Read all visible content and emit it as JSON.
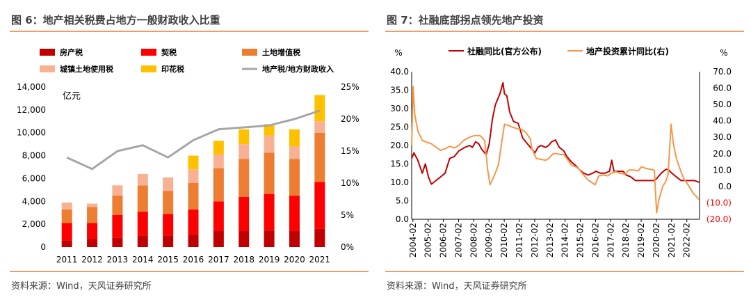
{
  "left": {
    "title": "图 6：地产相关税费占地方一般财政收入比重",
    "source": "资料来源：Wind，天风证券研究所"
  },
  "right": {
    "title": "图 7：社融底部拐点领先地产投资",
    "source": "资料来源：Wind，天风证券研究所"
  },
  "colors": {
    "rule": "#e7a06a",
    "fangchan": "#c00000",
    "qi": "#ff0000",
    "tudizengzhi": "#ed7d31",
    "chengzhen": "#f8b293",
    "yinhua": "#ffc000",
    "ratio_line": "#a6a6a6",
    "shehui": "#c00000",
    "invest": "#f79646",
    "neg_label": "#ff0000"
  },
  "chart_data": [
    {
      "type": "bar",
      "stacked": true,
      "categories": [
        "2011",
        "2012",
        "2013",
        "2014",
        "2015",
        "2016",
        "2017",
        "2018",
        "2019",
        "2020",
        "2021"
      ],
      "unit_label": "亿元",
      "ylim": [
        0,
        14000
      ],
      "y_ticks": [
        "0",
        "2,000",
        "4,000",
        "6,000",
        "8,000",
        "10,000",
        "12,000",
        "14,000"
      ],
      "y2lim": [
        0,
        25
      ],
      "y2_ticks": [
        "0%",
        "5%",
        "10%",
        "15%",
        "20%",
        "25%"
      ],
      "legend_position": "top",
      "series": [
        {
          "name": "房产税",
          "values": [
            600,
            700,
            800,
            1000,
            1000,
            1100,
            1400,
            1400,
            1450,
            1400,
            1600
          ]
        },
        {
          "name": "契税",
          "values": [
            1500,
            1400,
            2000,
            2100,
            1900,
            2200,
            2600,
            3000,
            3200,
            3100,
            4100
          ]
        },
        {
          "name": "土地增值税",
          "values": [
            1200,
            1400,
            1700,
            2300,
            2000,
            2300,
            2900,
            3300,
            3600,
            3200,
            4300
          ]
        },
        {
          "name": "城镇土地使用税",
          "values": [
            600,
            300,
            900,
            1000,
            1200,
            1200,
            1200,
            1300,
            1500,
            1100,
            1000
          ]
        },
        {
          "name": "印花税",
          "values": [
            0,
            0,
            0,
            0,
            0,
            1200,
            1200,
            1300,
            1000,
            1500,
            2300
          ]
        },
        {
          "name": "地产税/地方财政收入",
          "axis": "right",
          "values": [
            14.0,
            12.2,
            15.0,
            15.9,
            14.0,
            16.7,
            18.4,
            18.7,
            19.0,
            20.0,
            21.3
          ]
        }
      ]
    },
    {
      "type": "line",
      "x_ticks": [
        "2004-02",
        "2005-02",
        "2006-02",
        "2007-02",
        "2008-02",
        "2009-02",
        "2010-02",
        "2011-02",
        "2012-02",
        "2013-02",
        "2014-02",
        "2015-02",
        "2016-02",
        "2017-02",
        "2018-02",
        "2019-02",
        "2020-02",
        "2021-02",
        "2022-02"
      ],
      "xlim": [
        2004.0,
        2022.92
      ],
      "ylabel": "%",
      "y2label": "%",
      "ylim": [
        0,
        40
      ],
      "y_ticks": [
        "0.0",
        "5.0",
        "10.0",
        "15.0",
        "20.0",
        "25.0",
        "30.0",
        "35.0",
        "40.0"
      ],
      "y2lim": [
        -20,
        70
      ],
      "y2_ticks": [
        "70.0",
        "60.0",
        "50.0",
        "40.0",
        "30.0",
        "20.0",
        "10.0",
        "0.0",
        "(10.0)",
        "(20.0)"
      ],
      "legend_position": "top",
      "series": [
        {
          "name": "社融同比(官方公布)",
          "axis": "left",
          "points": [
            [
              2004.0,
              16.5
            ],
            [
              2004.15,
              18.0
            ],
            [
              2004.4,
              16.0
            ],
            [
              2004.7,
              12.5
            ],
            [
              2004.9,
              15.0
            ],
            [
              2005.1,
              11.5
            ],
            [
              2005.3,
              9.5
            ],
            [
              2005.6,
              10.5
            ],
            [
              2005.9,
              11.5
            ],
            [
              2006.2,
              12.5
            ],
            [
              2006.5,
              16.5
            ],
            [
              2006.8,
              17.0
            ],
            [
              2007.1,
              18.5
            ],
            [
              2007.5,
              19.5
            ],
            [
              2007.8,
              20.0
            ],
            [
              2008.0,
              19.5
            ],
            [
              2008.2,
              21.0
            ],
            [
              2008.4,
              20.5
            ],
            [
              2008.6,
              19.0
            ],
            [
              2008.9,
              17.5
            ],
            [
              2009.1,
              20.5
            ],
            [
              2009.3,
              27.0
            ],
            [
              2009.5,
              31.0
            ],
            [
              2009.8,
              34.0
            ],
            [
              2010.0,
              37.0
            ],
            [
              2010.1,
              34.0
            ],
            [
              2010.25,
              33.5
            ],
            [
              2010.45,
              29.0
            ],
            [
              2010.7,
              26.5
            ],
            [
              2011.0,
              26.0
            ],
            [
              2011.3,
              22.0
            ],
            [
              2011.6,
              20.5
            ],
            [
              2011.9,
              19.0
            ],
            [
              2012.1,
              18.0
            ],
            [
              2012.3,
              19.5
            ],
            [
              2012.5,
              20.0
            ],
            [
              2012.8,
              19.5
            ],
            [
              2013.0,
              20.0
            ],
            [
              2013.2,
              21.0
            ],
            [
              2013.45,
              21.5
            ],
            [
              2013.7,
              19.5
            ],
            [
              2014.0,
              18.5
            ],
            [
              2014.2,
              17.0
            ],
            [
              2014.5,
              15.5
            ],
            [
              2014.8,
              14.5
            ],
            [
              2015.0,
              13.5
            ],
            [
              2015.3,
              12.5
            ],
            [
              2015.6,
              12.0
            ],
            [
              2015.9,
              12.5
            ],
            [
              2016.1,
              13.0
            ],
            [
              2016.4,
              12.5
            ],
            [
              2016.7,
              12.5
            ],
            [
              2017.0,
              13.0
            ],
            [
              2017.15,
              16.0
            ],
            [
              2017.3,
              13.0
            ],
            [
              2017.6,
              13.0
            ],
            [
              2017.9,
              13.0
            ],
            [
              2018.1,
              12.0
            ],
            [
              2018.4,
              11.5
            ],
            [
              2018.7,
              10.5
            ],
            [
              2019.0,
              10.5
            ],
            [
              2019.3,
              10.5
            ],
            [
              2019.6,
              10.5
            ],
            [
              2019.9,
              10.5
            ],
            [
              2020.1,
              11.0
            ],
            [
              2020.4,
              12.5
            ],
            [
              2020.7,
              13.5
            ],
            [
              2020.85,
              13.5
            ],
            [
              2021.1,
              12.5
            ],
            [
              2021.4,
              11.5
            ],
            [
              2021.7,
              10.5
            ],
            [
              2022.0,
              10.5
            ],
            [
              2022.3,
              10.5
            ],
            [
              2022.6,
              10.5
            ],
            [
              2022.9,
              10.0
            ]
          ]
        },
        {
          "name": "地产投资累计同比(右)",
          "axis": "right",
          "points": [
            [
              2004.0,
              25.0
            ],
            [
              2004.1,
              61.0
            ],
            [
              2004.2,
              44.0
            ],
            [
              2004.4,
              34.0
            ],
            [
              2004.7,
              28.0
            ],
            [
              2005.0,
              27.0
            ],
            [
              2005.3,
              26.0
            ],
            [
              2005.6,
              24.0
            ],
            [
              2005.9,
              22.0
            ],
            [
              2006.2,
              23.0
            ],
            [
              2006.5,
              24.5
            ],
            [
              2006.8,
              23.5
            ],
            [
              2007.1,
              25.0
            ],
            [
              2007.4,
              28.0
            ],
            [
              2007.8,
              30.0
            ],
            [
              2008.1,
              31.0
            ],
            [
              2008.5,
              31.0
            ],
            [
              2008.8,
              28.0
            ],
            [
              2009.0,
              10.0
            ],
            [
              2009.15,
              1.0
            ],
            [
              2009.4,
              6.0
            ],
            [
              2009.7,
              13.0
            ],
            [
              2010.0,
              32.0
            ],
            [
              2010.1,
              38.0
            ],
            [
              2010.4,
              37.0
            ],
            [
              2010.7,
              36.0
            ],
            [
              2011.0,
              35.0
            ],
            [
              2011.2,
              35.0
            ],
            [
              2011.5,
              33.0
            ],
            [
              2011.8,
              29.0
            ],
            [
              2011.9,
              23.0
            ],
            [
              2012.2,
              17.0
            ],
            [
              2012.5,
              16.5
            ],
            [
              2012.8,
              16.0
            ],
            [
              2013.0,
              17.0
            ],
            [
              2013.3,
              20.0
            ],
            [
              2013.5,
              20.0
            ],
            [
              2013.8,
              19.5
            ],
            [
              2014.0,
              19.5
            ],
            [
              2014.2,
              17.0
            ],
            [
              2014.5,
              13.0
            ],
            [
              2014.8,
              12.0
            ],
            [
              2015.0,
              10.5
            ],
            [
              2015.3,
              7.0
            ],
            [
              2015.6,
              4.0
            ],
            [
              2015.9,
              2.0
            ],
            [
              2016.05,
              1.0
            ],
            [
              2016.3,
              6.5
            ],
            [
              2016.6,
              7.0
            ],
            [
              2016.9,
              6.5
            ],
            [
              2017.1,
              8.0
            ],
            [
              2017.4,
              9.0
            ],
            [
              2017.7,
              8.0
            ],
            [
              2018.0,
              7.5
            ],
            [
              2018.3,
              10.0
            ],
            [
              2018.6,
              10.0
            ],
            [
              2018.9,
              9.5
            ],
            [
              2019.1,
              12.0
            ],
            [
              2019.4,
              11.0
            ],
            [
              2019.7,
              10.5
            ],
            [
              2019.95,
              10.0
            ],
            [
              2020.1,
              -16.0
            ],
            [
              2020.25,
              -8.0
            ],
            [
              2020.5,
              0.0
            ],
            [
              2020.7,
              3.0
            ],
            [
              2020.85,
              7.0
            ],
            [
              2021.05,
              38.0
            ],
            [
              2021.2,
              26.0
            ],
            [
              2021.4,
              17.0
            ],
            [
              2021.7,
              9.0
            ],
            [
              2021.9,
              4.5
            ],
            [
              2022.2,
              0.5
            ],
            [
              2022.5,
              -4.0
            ],
            [
              2022.7,
              -6.0
            ],
            [
              2022.9,
              -8.0
            ]
          ]
        }
      ]
    }
  ]
}
